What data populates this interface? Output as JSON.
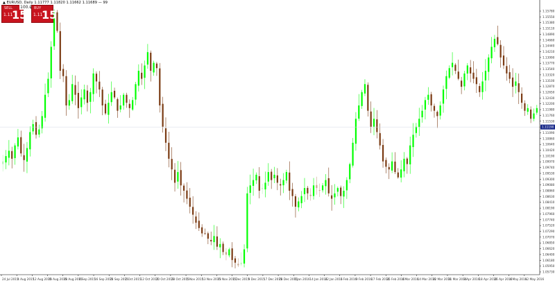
{
  "window": {
    "info_line": "▲ EURUSD, Daily  1.11777  1.11820  1.11662  1.11689  —  99"
  },
  "trade_panel": {
    "sell": {
      "label": "SELL",
      "price_prefix": "1.11",
      "big_digits": "15",
      "sup_digit": "0"
    },
    "buy": {
      "label": "BUY",
      "price_prefix": "1.11",
      "big_digits": "15",
      "sup_digit": "3"
    },
    "lot_value": "100.00",
    "minus_label": "−",
    "plus_label": "+"
  },
  "chart_data": {
    "type": "candlestick",
    "symbol": "EURUSD",
    "timeframe": "Daily",
    "ylim": [
      1.0565,
      1.158
    ],
    "current_price": "1.11190",
    "current_price_value": 1.1119,
    "colors": {
      "bull": "#00ff00",
      "bull_light": "#b8f5b8",
      "bear": "#7a3a12",
      "bear_light": "#c8a890",
      "price_tag": "#1a2a8a",
      "grid_line": "#cfd8e3"
    },
    "y_ticks": [
      "1.15780",
      "1.15550",
      "1.15380",
      "1.15110",
      "1.14890",
      "1.14660",
      "1.14440",
      "1.14210",
      "1.13990",
      "1.13770",
      "1.13540",
      "1.13320",
      "1.13100",
      "1.12870",
      "1.12650",
      "1.12430",
      "1.12200",
      "1.11980",
      "1.11760",
      "1.11530",
      "1.11310",
      "1.11090",
      "1.10860",
      "1.10640",
      "1.10420",
      "1.10190",
      "1.09970",
      "1.09740",
      "1.09530",
      "1.09300",
      "1.09080",
      "1.08860",
      "1.08630",
      "1.08410",
      "1.08190",
      "1.07960",
      "1.07740",
      "1.07520",
      "1.07290",
      "1.07070",
      "1.06850",
      "1.06620",
      "1.06400",
      "1.06180",
      "1.05950",
      "1.05730"
    ],
    "x_labels": [
      "24 Jul 2015",
      "4 Aug 2015",
      "12 Aug 2015",
      "20 Aug 2015",
      "28 Aug 2015",
      "8 Sep 2015",
      "16 Sep 2015",
      "24 Sep 2015",
      "2 Oct 2015",
      "12 Oct 2015",
      "20 Oct 2015",
      "28 Oct 2015",
      "5 Nov 2015",
      "13 Nov 2015",
      "23 Nov 2015",
      "1 Dec 2015",
      "9 Dec 2015",
      "17 Dec 2015",
      "28 Dec 2015",
      "6 Jan 2016",
      "14 Jan 2016",
      "22 Jan 2016",
      "1 Feb 2016",
      "9 Feb 2016",
      "17 Feb 2016",
      "25 Feb 2016",
      "4 Mar 2016",
      "14 Mar 2016",
      "22 Mar 2016",
      "31 Mar 2016",
      "8 Apr 2016",
      "18 Apr 2016",
      "26 Apr 2016",
      "4 May 2016",
      "12 May 2016"
    ],
    "close_path": [
      1.099,
      1.101,
      1.103,
      1.1,
      1.105,
      1.108,
      1.102,
      1.0995,
      1.104,
      1.11,
      1.113,
      1.109,
      1.111,
      1.116,
      1.124,
      1.13,
      1.142,
      1.155,
      1.148,
      1.133,
      1.131,
      1.12,
      1.122,
      1.128,
      1.124,
      1.119,
      1.123,
      1.126,
      1.121,
      1.125,
      1.132,
      1.129,
      1.126,
      1.12,
      1.117,
      1.121,
      1.125,
      1.123,
      1.118,
      1.12,
      1.124,
      1.121,
      1.119,
      1.122,
      1.128,
      1.133,
      1.13,
      1.135,
      1.14,
      1.133,
      1.136,
      1.134,
      1.12,
      1.112,
      1.106,
      1.1,
      1.096,
      1.091,
      1.095,
      1.09,
      1.088,
      1.085,
      1.082,
      1.079,
      1.076,
      1.074,
      1.072,
      1.072,
      1.07,
      1.069,
      1.071,
      1.067,
      1.068,
      1.065,
      1.064,
      1.066,
      1.062,
      1.061,
      1.06,
      1.061,
      1.066,
      1.087,
      1.09,
      1.092,
      1.094,
      1.088,
      1.089,
      1.091,
      1.095,
      1.092,
      1.094,
      1.091,
      1.09,
      1.092,
      1.095,
      1.088,
      1.086,
      1.082,
      1.084,
      1.086,
      1.089,
      1.087,
      1.086,
      1.09,
      1.089,
      1.088,
      1.09,
      1.092,
      1.087,
      1.085,
      1.087,
      1.089,
      1.086,
      1.088,
      1.092,
      1.098,
      1.106,
      1.115,
      1.12,
      1.125,
      1.128,
      1.118,
      1.112,
      1.115,
      1.11,
      1.105,
      1.099,
      1.097,
      1.096,
      1.099,
      1.095,
      1.093,
      1.096,
      1.1,
      1.098,
      1.105,
      1.109,
      1.112,
      1.115,
      1.118,
      1.122,
      1.124,
      1.12,
      1.118,
      1.116,
      1.12,
      1.126,
      1.131,
      1.134,
      1.136,
      1.133,
      1.13,
      1.127,
      1.132,
      1.135,
      1.132,
      1.13,
      1.128,
      1.125,
      1.129,
      1.133,
      1.138,
      1.142,
      1.145,
      1.143,
      1.138,
      1.135,
      1.132,
      1.13,
      1.127,
      1.129,
      1.125,
      1.121,
      1.118,
      1.119,
      1.115,
      1.117,
      1.119
    ]
  }
}
